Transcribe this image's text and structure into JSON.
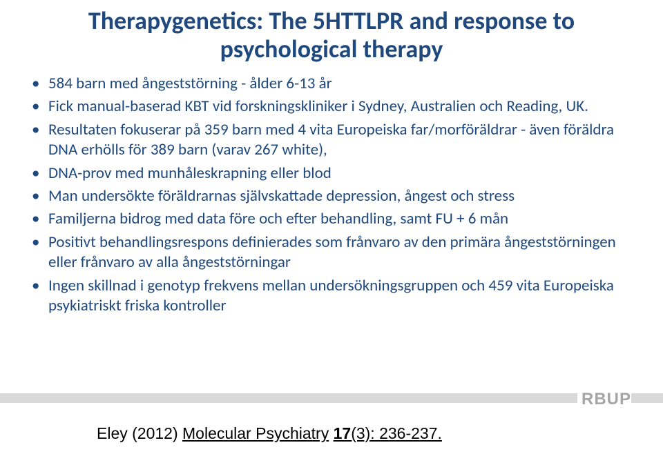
{
  "title": {
    "line1": "Therapygenetics: The 5HTTLPR and response to",
    "line2": "psychological therapy"
  },
  "bullets": [
    "584 barn med ångeststörning - ålder 6-13 år",
    "Fick manual-baserad KBT vid forskningskliniker i Sydney, Australien och Reading, UK.",
    "Resultaten fokuserar på 359 barn med 4 vita Europeiska far/morföräldrar - även föräldra DNA erhölls för 389 barn  (varav 267 white),",
    "DNA-prov med munhåleskrapning eller blod",
    "Man undersökte föräldrarnas självskattade depression, ångest och stress",
    "Familjerna bidrog med data före och efter behandling, samt FU + 6 mån",
    "Positivt behandlingsrespons definierades som frånvaro av den primära ångeststörningen eller  frånvaro av alla ångeststörningar",
    "Ingen skillnad i genotyp frekvens mellan undersökningsgruppen och 459 vita Europeiska psykiatriskt friska kontroller"
  ],
  "footer": {
    "logo": "RBUP"
  },
  "citation": {
    "author_year": "Eley (2012) ",
    "journal": "Molecular Psychiatry",
    "vol": "17",
    "issue_pages": "(3): 236-237."
  },
  "colors": {
    "text": "#1f497d",
    "bar": "#d9d9d9",
    "logo": "#a6a6a6",
    "citation": "#000000",
    "bg": "#ffffff"
  },
  "fonts": {
    "title_size": 36,
    "bullet_size": 23,
    "citation_size": 23
  }
}
